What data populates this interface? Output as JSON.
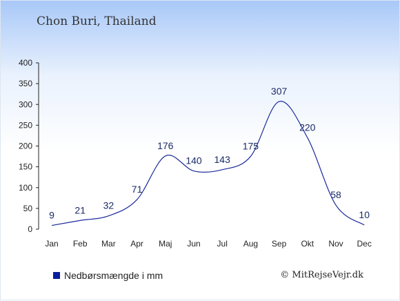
{
  "chart_data": {
    "type": "line",
    "title": "Chon Buri, Thailand",
    "categories": [
      "Jan",
      "Feb",
      "Mar",
      "Apr",
      "Maj",
      "Jun",
      "Jul",
      "Aug",
      "Sep",
      "Okt",
      "Nov",
      "Dec"
    ],
    "series": [
      {
        "name": "Nedbørsmængde i mm",
        "values": [
          9,
          21,
          32,
          71,
          176,
          140,
          143,
          175,
          307,
          220,
          58,
          10
        ]
      }
    ],
    "ylim": [
      0,
      400
    ],
    "yticks": [
      0,
      50,
      100,
      150,
      200,
      250,
      300,
      350,
      400
    ],
    "grid": false,
    "line_color": "#1a2a99",
    "legend_color": "#0a1e9e"
  },
  "legend": {
    "label": "Nedbørsmængde i mm"
  },
  "credit": "© MitRejseVejr.dk"
}
